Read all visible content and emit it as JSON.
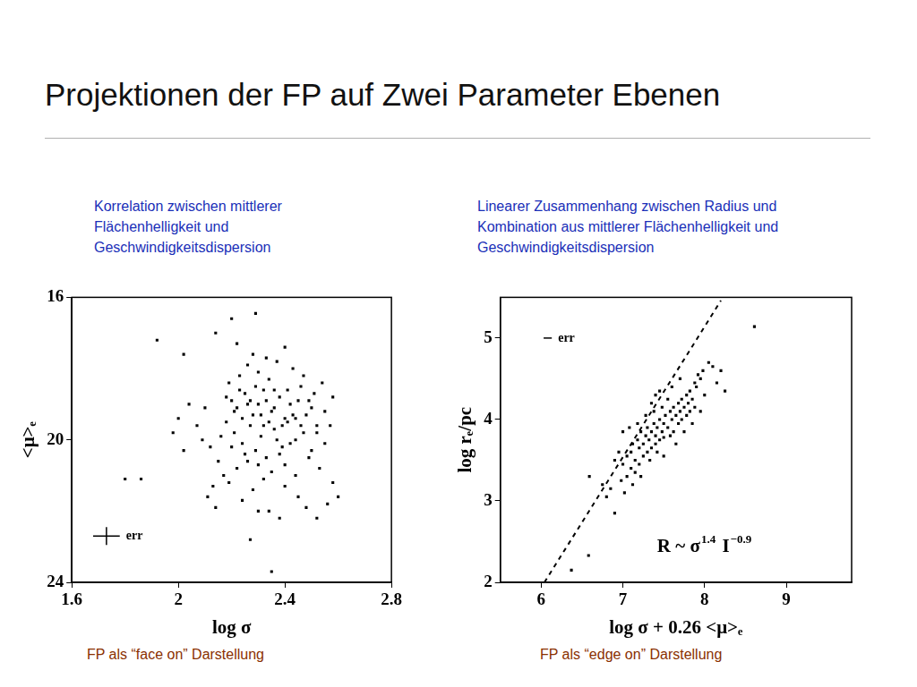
{
  "slide": {
    "title": "Projektionen der FP auf Zwei Parameter Ebenen"
  },
  "chart_data": [
    {
      "type": "scatter",
      "subtitle": [
        "Korrelation zwischen mittlerer",
        "Flächenhelligkeit und",
        "Geschwindigkeitsdispersion"
      ],
      "caption": "FP als “face on” Darstellung",
      "x_label": "log σ",
      "y_label": "<μ>ₑ",
      "xlim": [
        1.6,
        2.8
      ],
      "xticks": [
        1.6,
        2,
        2.4,
        2.8
      ],
      "ylim": [
        24,
        16
      ],
      "yticks": [
        16,
        20,
        24
      ],
      "grid": false,
      "error_bar": {
        "label": "err",
        "x": 1.73,
        "y": 22.7,
        "xerr": 0.05,
        "yerr": 0.25
      },
      "series": [
        {
          "type": "scatter",
          "marker": "square",
          "color": "#000000",
          "x": [
            2.2,
            2.22,
            2.25,
            2.28,
            2.3,
            2.32,
            2.35,
            2.38,
            2.4,
            2.42,
            2.45,
            2.48,
            2.5,
            2.18,
            2.21,
            2.24,
            2.27,
            2.29,
            2.31,
            2.33,
            2.36,
            2.39,
            2.41,
            2.44,
            2.47,
            2.52,
            2.55,
            2.58,
            2.19,
            2.23,
            2.26,
            2.3,
            2.34,
            2.37,
            2.43,
            2.46,
            2.51,
            2.28,
            2.33,
            2.4,
            2.15,
            2.17,
            2.22,
            2.26,
            2.32,
            2.35,
            2.4,
            2.44,
            2.49,
            2.53,
            2.58,
            2.6,
            2.56,
            2.1,
            2.07,
            2.04,
            2.12,
            2.09,
            2.13,
            2.11,
            2.14,
            2.0,
            1.98,
            2.02,
            1.92,
            2.02,
            2.14,
            2.2,
            2.29,
            2.22,
            1.8,
            1.86,
            2.27,
            2.35,
            2.3,
            2.45,
            2.38,
            2.42,
            2.37,
            2.34,
            2.31,
            2.27,
            2.24,
            2.21,
            2.26,
            2.29,
            2.33,
            2.36,
            2.39,
            2.43,
            2.46,
            2.49,
            2.52,
            2.55,
            2.57,
            2.54,
            2.47,
            2.41,
            2.38,
            2.3,
            2.25,
            2.2,
            2.16,
            2.18,
            2.23,
            2.32,
            2.36,
            2.44,
            2.5,
            2.4,
            2.28,
            2.19,
            2.24,
            2.34,
            2.48,
            2.52
          ],
          "y": [
            18.9,
            19.1,
            18.7,
            19.3,
            19.0,
            18.6,
            19.2,
            18.8,
            19.4,
            19.0,
            18.9,
            19.3,
            19.1,
            19.5,
            19.8,
            20.1,
            19.6,
            20.3,
            19.9,
            20.5,
            19.7,
            20.2,
            19.5,
            20.0,
            19.8,
            19.6,
            19.2,
            18.8,
            18.4,
            18.2,
            17.9,
            18.1,
            18.3,
            17.8,
            18.0,
            18.5,
            18.7,
            17.6,
            17.7,
            17.4,
            20.6,
            21.0,
            20.8,
            20.6,
            21.1,
            20.9,
            20.7,
            21.0,
            20.5,
            20.8,
            21.2,
            21.6,
            21.8,
            19.1,
            19.6,
            19.0,
            20.2,
            20.0,
            21.3,
            21.6,
            21.9,
            19.4,
            19.8,
            20.3,
            17.2,
            17.6,
            17.0,
            16.6,
            16.45,
            17.3,
            21.1,
            21.1,
            22.8,
            23.7,
            22.0,
            21.6,
            22.2,
            20.1,
            20.0,
            19.5,
            19.3,
            18.9,
            19.4,
            19.2,
            19.0,
            18.5,
            18.9,
            18.6,
            19.6,
            19.3,
            19.6,
            18.9,
            19.8,
            20.1,
            19.6,
            18.4,
            18.2,
            18.6,
            20.4,
            20.7,
            20.4,
            20.2,
            19.9,
            18.8,
            18.6,
            19.6,
            19.1,
            19.4,
            20.3,
            21.3,
            21.4,
            21.2,
            21.7,
            22.0,
            21.9,
            22.2
          ]
        }
      ]
    },
    {
      "type": "scatter",
      "subtitle": [
        "Linearer Zusammenhang zwischen Radius und",
        "Kombination aus mittlerer Flächenhelligkeit und",
        "Geschwindigkeitsdispersion"
      ],
      "caption": "FP als “edge on” Darstellung",
      "x_label": "log σ + 0.26 <μ>ₑ",
      "y_label": "log rₑ/pc",
      "xlim": [
        5.5,
        9.8
      ],
      "xticks": [
        6,
        7,
        8,
        9
      ],
      "ylim": [
        2,
        5.5
      ],
      "yticks": [
        2,
        3,
        4,
        5
      ],
      "grid": false,
      "error_bar": {
        "label": "err",
        "x": 6.08,
        "y": 5.0,
        "xerr": 0.05,
        "yerr": 0
      },
      "formula": {
        "x": 7.42,
        "y": 2.37,
        "parts": [
          {
            "base": "R ~ σ",
            "exponent": "1.4"
          },
          {
            "base": " I",
            "exponent": "−0.9"
          }
        ]
      },
      "series": [
        {
          "type": "line",
          "line_style": "dashed",
          "color": "#000000",
          "x": [
            6.04,
            8.2
          ],
          "y": [
            2,
            5.46
          ]
        },
        {
          "type": "scatter",
          "marker": "square",
          "color": "#000000",
          "x": [
            7.0,
            7.05,
            7.1,
            7.12,
            7.15,
            7.18,
            7.2,
            7.22,
            7.25,
            7.28,
            7.3,
            7.32,
            7.35,
            7.38,
            7.4,
            7.42,
            7.45,
            7.48,
            7.5,
            7.52,
            7.55,
            7.58,
            7.6,
            7.62,
            7.65,
            7.68,
            7.7,
            7.72,
            7.75,
            7.78,
            7.8,
            7.82,
            7.85,
            7.88,
            7.9,
            7.92,
            7.95,
            7.98,
            8.05,
            8.1,
            8.15,
            8.2,
            8.25,
            7.4,
            7.45,
            7.35,
            7.55,
            7.25,
            7.3,
            7.35,
            7.4,
            7.45,
            7.5,
            7.2,
            7.15,
            7.1,
            7.05,
            6.98,
            6.95,
            6.9,
            7.0,
            7.08,
            7.18,
            7.28,
            7.38,
            7.48,
            7.58,
            7.62,
            7.68,
            7.72,
            7.78,
            7.82,
            7.88,
            6.85,
            6.8,
            6.75,
            6.59,
            6.58,
            6.37,
            8.61,
            7.6,
            7.7,
            7.5,
            7.42,
            7.33,
            7.22,
            7.12,
            7.02,
            6.9,
            7.65,
            7.75,
            7.85,
            7.95,
            8.0
          ],
          "y": [
            3.45,
            3.55,
            3.6,
            3.7,
            3.5,
            3.75,
            3.65,
            3.85,
            3.7,
            3.8,
            3.9,
            3.75,
            3.85,
            3.95,
            3.8,
            3.9,
            4.0,
            3.85,
            3.95,
            4.05,
            3.9,
            4.1,
            4.0,
            4.15,
            4.05,
            4.2,
            4.1,
            4.25,
            4.15,
            4.3,
            4.2,
            4.35,
            4.25,
            4.45,
            4.4,
            4.55,
            4.5,
            4.6,
            4.7,
            4.65,
            4.45,
            4.6,
            4.35,
            4.3,
            4.35,
            4.2,
            4.25,
            3.55,
            3.6,
            3.65,
            3.7,
            3.75,
            3.78,
            3.45,
            3.35,
            3.4,
            3.3,
            3.25,
            3.6,
            3.5,
            3.85,
            3.9,
            3.95,
            4.05,
            4.1,
            4.15,
            3.8,
            3.85,
            3.95,
            4.0,
            4.05,
            4.1,
            4.15,
            3.15,
            3.05,
            3.2,
            3.3,
            2.33,
            2.15,
            5.14,
            4.4,
            4.5,
            3.55,
            3.6,
            3.5,
            3.3,
            3.2,
            3.1,
            2.85,
            3.7,
            3.85,
            3.95,
            4.1,
            4.3
          ]
        }
      ]
    }
  ]
}
